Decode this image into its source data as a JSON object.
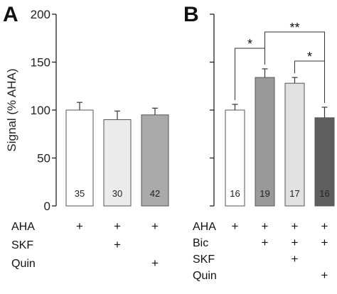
{
  "chart_data": [
    {
      "type": "bar",
      "panel_label": "A",
      "ylabel": "Signal (% AHA)",
      "ylim": [
        0,
        200
      ],
      "yticks": [
        0,
        50,
        100,
        150,
        200
      ],
      "bars": [
        {
          "value": 100,
          "error": 8,
          "color": "#ffffff",
          "n": "35"
        },
        {
          "value": 90,
          "error": 9,
          "color": "#ebebeb",
          "n": "30"
        },
        {
          "value": 95,
          "error": 7,
          "color": "#aaaaaa",
          "n": "42"
        }
      ],
      "conditions": [
        {
          "label": "AHA",
          "plus": [
            true,
            true,
            true
          ]
        },
        {
          "label": "SKF",
          "plus": [
            false,
            true,
            false
          ]
        },
        {
          "label": "Quin",
          "plus": [
            false,
            false,
            true
          ]
        }
      ]
    },
    {
      "type": "bar",
      "panel_label": "B",
      "ylabel": "",
      "ylim": [
        0,
        200
      ],
      "bars": [
        {
          "value": 100,
          "error": 6,
          "color": "#ffffff",
          "n": "16"
        },
        {
          "value": 134,
          "error": 9,
          "color": "#999999",
          "n": "19"
        },
        {
          "value": 128,
          "error": 6,
          "color": "#e1e1e1",
          "n": "17"
        },
        {
          "value": 92,
          "error": 11,
          "color": "#5f5f5f",
          "n": "16"
        }
      ],
      "conditions": [
        {
          "label": "AHA",
          "plus": [
            true,
            true,
            true,
            true
          ]
        },
        {
          "label": "Bic",
          "plus": [
            false,
            true,
            true,
            true
          ]
        },
        {
          "label": "SKF",
          "plus": [
            false,
            false,
            true,
            false
          ]
        },
        {
          "label": "Quin",
          "plus": [
            false,
            false,
            false,
            true
          ]
        }
      ],
      "significance": [
        {
          "from": 0,
          "to": 1,
          "label": "*"
        },
        {
          "from": 1,
          "to": 3,
          "label": "**"
        },
        {
          "from": 2,
          "to": 3,
          "label": "*"
        }
      ]
    }
  ]
}
